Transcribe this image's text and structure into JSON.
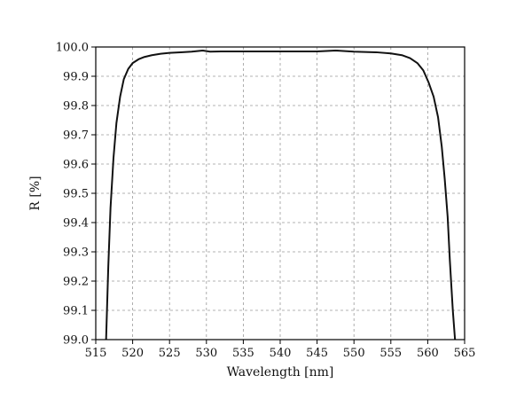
{
  "chart_data": {
    "type": "line",
    "title": "",
    "xlabel": "Wavelength [nm]",
    "ylabel": "R [%]",
    "xlim": [
      515,
      565
    ],
    "ylim": [
      99.0,
      100.0
    ],
    "x_ticks": [
      515,
      520,
      525,
      530,
      535,
      540,
      545,
      550,
      555,
      560,
      565
    ],
    "y_ticks": [
      "99.0",
      "99.1",
      "99.2",
      "99.3",
      "99.4",
      "99.5",
      "99.6",
      "99.7",
      "99.8",
      "99.9",
      "100.0"
    ],
    "grid": true,
    "legend": "none",
    "line_color": "#111111",
    "series": [
      {
        "x": [
          516.4,
          516.7,
          517.0,
          517.4,
          517.8,
          518.3,
          518.8,
          519.4,
          520.0,
          520.8,
          521.6,
          522.6,
          523.8,
          525.0,
          526.5,
          528.0,
          529.5,
          530.5,
          532.0,
          535.0,
          540.0,
          545.0,
          547.5,
          550.0,
          553.0,
          555.0,
          556.5,
          557.6,
          558.6,
          559.4,
          560.1,
          560.8,
          561.4,
          561.9,
          562.3,
          562.7,
          563.0,
          563.4,
          563.7
        ],
        "y": [
          99.0,
          99.25,
          99.45,
          99.62,
          99.74,
          99.83,
          99.89,
          99.925,
          99.945,
          99.958,
          99.966,
          99.972,
          99.977,
          99.98,
          99.982,
          99.984,
          99.988,
          99.984,
          99.985,
          99.985,
          99.985,
          99.985,
          99.988,
          99.984,
          99.982,
          99.978,
          99.972,
          99.962,
          99.945,
          99.92,
          99.88,
          99.83,
          99.76,
          99.66,
          99.55,
          99.42,
          99.27,
          99.1,
          99.0
        ]
      }
    ]
  }
}
